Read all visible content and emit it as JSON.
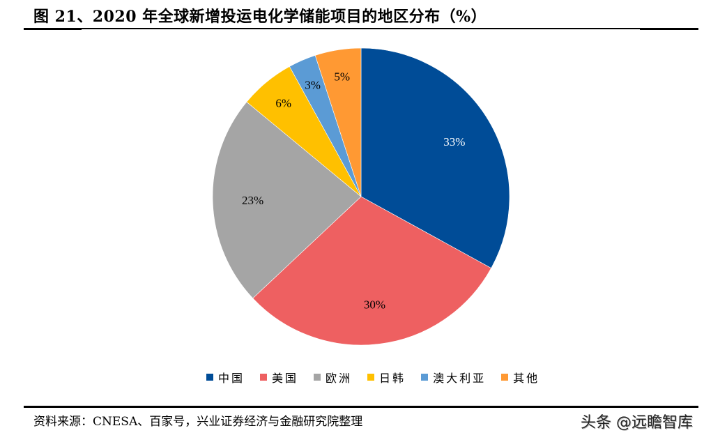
{
  "header": {
    "title": "图 21、2020 年全球新增投运电化学储能项目的地区分布（%）"
  },
  "footer": {
    "source": "资料来源：CNESA、百家号，兴业证券经济与金融研究院整理",
    "watermark": "头条 @远瞻智库"
  },
  "legend": {
    "items": [
      {
        "label": "中国",
        "color": "#004C97"
      },
      {
        "label": "美国",
        "color": "#EE6061"
      },
      {
        "label": "欧洲",
        "color": "#A5A5A5"
      },
      {
        "label": "日韩",
        "color": "#FFC000"
      },
      {
        "label": "澳大利亚",
        "color": "#5B9BD5"
      },
      {
        "label": "其他",
        "color": "#FF9933"
      }
    ]
  },
  "chart_data": {
    "type": "pie",
    "title": "图 21、2020 年全球新增投运电化学储能项目的地区分布（%）",
    "categories": [
      "中国",
      "美国",
      "欧洲",
      "日韩",
      "澳大利亚",
      "其他"
    ],
    "values": [
      33,
      30,
      23,
      6,
      3,
      5
    ],
    "labels": [
      "33%",
      "30%",
      "23%",
      "6%",
      "3%",
      "5%"
    ],
    "colors": [
      "#004C97",
      "#EE6061",
      "#A5A5A5",
      "#FFC000",
      "#5B9BD5",
      "#FF9933"
    ],
    "label_colors": [
      "#FFFFFF",
      "#000000",
      "#000000",
      "#000000",
      "#000000",
      "#000000"
    ],
    "start_angle_deg": 0,
    "direction": "clockwise",
    "legend_position": "bottom",
    "xlabel": "",
    "ylabel": "",
    "source": "资料来源：CNESA、百家号，兴业证券经济与金融研究院整理"
  }
}
